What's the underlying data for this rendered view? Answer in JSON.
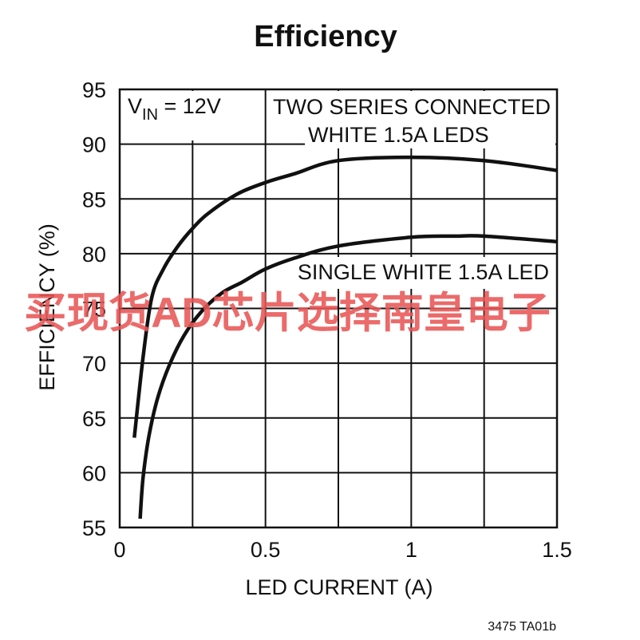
{
  "chart_data": {
    "type": "line",
    "title": "Efficiency",
    "xlabel": "LED CURRENT (A)",
    "ylabel": "EFFICIENCY (%)",
    "xlim": [
      0,
      1.5
    ],
    "ylim": [
      55,
      95
    ],
    "xticks": [
      0,
      0.25,
      0.5,
      0.75,
      1.0,
      1.25,
      1.5
    ],
    "xtick_labels": [
      "0",
      "",
      "0.5",
      "",
      "1",
      "",
      "1.5"
    ],
    "yticks": [
      55,
      60,
      65,
      70,
      75,
      80,
      85,
      90,
      95
    ],
    "ytick_labels": [
      "55",
      "60",
      "65",
      "70",
      "75",
      "80",
      "85",
      "90",
      "95"
    ],
    "grid": true,
    "condition_label": {
      "main": "V",
      "sub": "IN",
      "rest": " = 12V"
    },
    "series": [
      {
        "name": "TWO SERIES CONNECTED WHITE 1.5A LEDS",
        "label_lines": [
          "TWO SERIES CONNECTED",
          "WHITE 1.5A LEDS"
        ],
        "x": [
          0.05,
          0.08,
          0.11,
          0.15,
          0.2,
          0.25,
          0.3,
          0.4,
          0.5,
          0.6,
          0.75,
          1.0,
          1.25,
          1.5
        ],
        "y": [
          63.2,
          70.5,
          76.0,
          78.6,
          80.7,
          82.3,
          83.6,
          85.4,
          86.5,
          87.3,
          88.5,
          88.8,
          88.5,
          87.6
        ]
      },
      {
        "name": "SINGLE WHITE 1.5A LED",
        "label_lines": [
          "SINGLE WHITE 1.5A LED"
        ],
        "x": [
          0.07,
          0.08,
          0.1,
          0.13,
          0.17,
          0.22,
          0.28,
          0.35,
          0.42,
          0.5,
          0.6,
          0.75,
          1.0,
          1.15,
          1.25,
          1.5
        ],
        "y": [
          55.8,
          59.5,
          63.3,
          66.8,
          69.8,
          72.5,
          74.7,
          76.4,
          77.4,
          78.6,
          79.6,
          80.7,
          81.5,
          81.6,
          81.6,
          81.1
        ]
      }
    ],
    "footnote": "3475 TA01b"
  },
  "watermark": "买现货AD芯片选择南皇电子"
}
